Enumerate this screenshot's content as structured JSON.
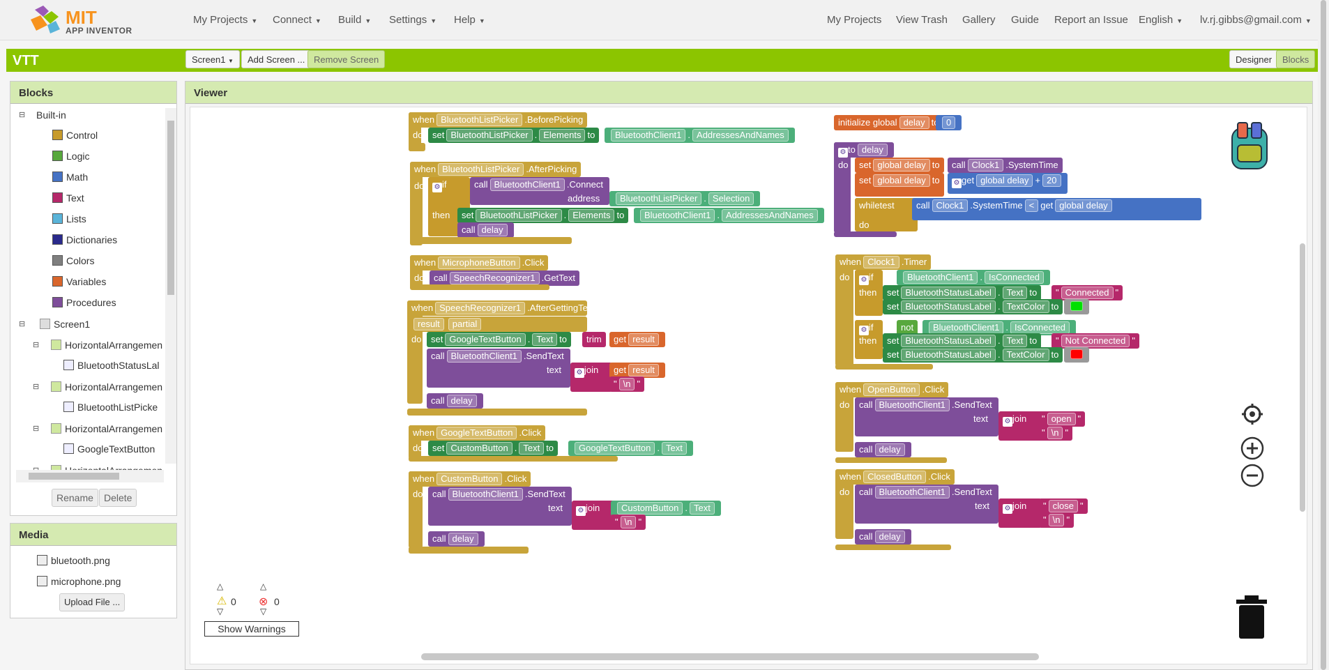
{
  "topbar": {
    "logo": {
      "line1": "MIT",
      "line2": "APP INVENTOR"
    },
    "menus": [
      "My Projects",
      "Connect",
      "Build",
      "Settings",
      "Help"
    ],
    "right_links": [
      "My Projects",
      "View Trash",
      "Gallery",
      "Guide",
      "Report an Issue"
    ],
    "language": "English",
    "account": "lv.rj.gibbs@gmail.com"
  },
  "projectbar": {
    "name": "VTT",
    "screen_select": "Screen1",
    "add_screen": "Add Screen ...",
    "remove_screen": "Remove Screen",
    "designer": "Designer",
    "blocks": "Blocks"
  },
  "blocks_panel": {
    "title": "Blocks",
    "builtin_label": "Built-in",
    "builtin": [
      {
        "label": "Control",
        "color": "#c79b2c"
      },
      {
        "label": "Logic",
        "color": "#58a83d"
      },
      {
        "label": "Math",
        "color": "#4572c4"
      },
      {
        "label": "Text",
        "color": "#b5286a"
      },
      {
        "label": "Lists",
        "color": "#5ab4d9"
      },
      {
        "label": "Dictionaries",
        "color": "#2a2a8c"
      },
      {
        "label": "Colors",
        "color": "#7f7f7f"
      },
      {
        "label": "Variables",
        "color": "#d9662c"
      },
      {
        "label": "Procedures",
        "color": "#7e4e9a"
      }
    ],
    "screen": "Screen1",
    "components": [
      {
        "label": "HorizontalArrangemen",
        "child": "BluetoothStatusLal"
      },
      {
        "label": "HorizontalArrangemen",
        "child": "BluetoothListPicke"
      },
      {
        "label": "HorizontalArrangemen",
        "child": "GoogleTextButton"
      },
      {
        "label": "HorizontalArrangemen",
        "child": ""
      }
    ],
    "rename": "Rename",
    "delete": "Delete"
  },
  "media_panel": {
    "title": "Media",
    "files": [
      "bluetooth.png",
      "microphone.png"
    ],
    "upload": "Upload File ..."
  },
  "viewer": {
    "title": "Viewer",
    "warnings_count": "0",
    "errors_count": "0",
    "show_warnings": "Show Warnings"
  },
  "words": {
    "when": "when",
    "do": "do",
    "set": "set",
    "to": "to",
    "call": "call",
    "if": "if",
    "then": "then",
    "address": "address",
    "text": "text",
    "join": "join",
    "get": "get",
    "trim": "trim",
    "not": "not",
    "while": "while",
    "test": "test",
    "initialize_global": "initialize global",
    "to_proc": "to",
    "plus": "+",
    "lt": "<",
    "dot": "."
  },
  "blocks": {
    "bp_comp": "BluetoothListPicker",
    "bp_event": ".BeforePicking",
    "bp_prop": "Elements",
    "bc": "BluetoothClient1",
    "addr_names": "AddressesAndNames",
    "ap_event": ".AfterPicking",
    "connect": ".Connect",
    "selection": "Selection",
    "delay": "delay",
    "mic": "MicrophoneButton",
    "click": ".Click",
    "sr": "SpeechRecognizer1",
    "gettext": ".GetText",
    "after_getting": ".AfterGettingText",
    "result": "result",
    "partial": "partial",
    "gtb": "GoogleTextButton",
    "text_prop": "Text",
    "sendtext": ".SendText",
    "newline": "\\n",
    "custom": "CustomButton",
    "global_delay": "global delay",
    "num0": "0",
    "num20": "20",
    "clock": "Clock1",
    "systemtime": ".SystemTime",
    "timer": ".Timer",
    "isconnected": "IsConnected",
    "bsl": "BluetoothStatusLabel",
    "connected": "Connected",
    "textcolor": "TextColor",
    "not_connected": "Not Connected",
    "green": "#00e000",
    "red": "#ff0000",
    "open_btn": "OpenButton",
    "open": "open",
    "closed_btn": "ClosedButton",
    "close": "close",
    "q": "\""
  },
  "icons": [
    "backpack-icon",
    "center-icon",
    "zoom-in-icon",
    "zoom-out-icon",
    "trash-icon",
    "warning-icon",
    "error-icon"
  ]
}
